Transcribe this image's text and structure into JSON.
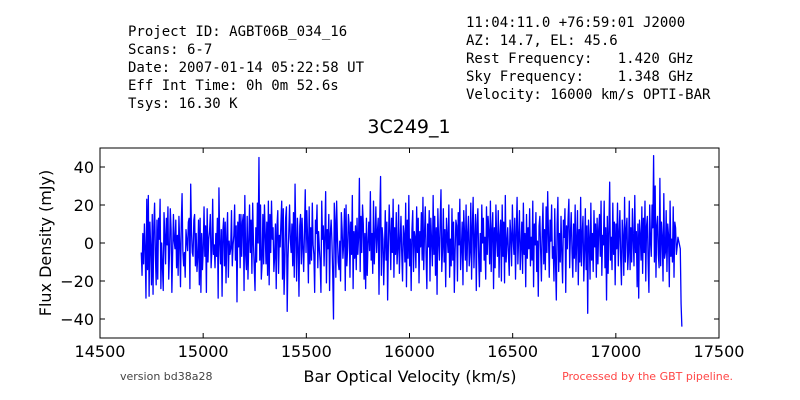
{
  "header": {
    "left": [
      "Project ID: AGBT06B_034_16",
      "Scans: 6-7",
      "Date: 2007-01-14 05:22:58 UT",
      "Eff Int Time: 0h 0m 52.6s",
      "Tsys: 16.30 K"
    ],
    "right": [
      "11:04:11.0 +76:59:01 J2000",
      "AZ: 14.7, EL: 45.6",
      "Rest Frequency:   1.420 GHz",
      "Sky Frequency:    1.348 GHz",
      "Velocity: 16000 km/s OPTI-BAR"
    ]
  },
  "footer": {
    "version": "version bd38a28",
    "processed": "Processed by the GBT pipeline."
  },
  "colors": {
    "series": "#0000ff",
    "processed_text": "#ff4444"
  },
  "chart_data": {
    "type": "line",
    "title": "3C249_1",
    "xlabel": "Bar Optical Velocity (km/s)",
    "ylabel": "Flux Density (mJy)",
    "xlim": [
      14500,
      17500
    ],
    "ylim": [
      -50,
      50
    ],
    "x_ticks": [
      14500,
      15000,
      15500,
      16000,
      16500,
      17000,
      17500
    ],
    "y_ticks": [
      -40,
      -20,
      0,
      20,
      40
    ],
    "grid": false,
    "series": [
      {
        "x_start": 14700,
        "x_end": 17320,
        "x_step": 5.95,
        "values": [
          -5,
          -17,
          5,
          -11,
          10,
          -3,
          -29,
          23,
          -14,
          25,
          -28,
          11,
          -2,
          -22,
          15,
          -27,
          9,
          21,
          -6,
          -22,
          12,
          -19,
          13,
          2,
          23,
          -24,
          0,
          -12,
          -25,
          16,
          4,
          -11,
          13,
          -1,
          19,
          -19,
          -5,
          18,
          7,
          -26,
          -5,
          15,
          1,
          -3,
          12,
          -13,
          4,
          -17,
          14,
          0,
          -23,
          10,
          26,
          -4,
          -12,
          -5,
          -18,
          7,
          1,
          -4,
          11,
          13,
          -24,
          31,
          6,
          -5,
          -7,
          12,
          15,
          -12,
          5,
          -15,
          -7,
          12,
          -22,
          13,
          -26,
          5,
          -14,
          -3,
          19,
          -7,
          9,
          -26,
          18,
          -10,
          2,
          6,
          15,
          -13,
          -4,
          23,
          -6,
          -1,
          -13,
          5,
          -7,
          13,
          -29,
          29,
          1,
          -11,
          7,
          -28,
          6,
          13,
          -12,
          11,
          -21,
          3,
          16,
          -18,
          1,
          -6,
          -3,
          17,
          -12,
          -1,
          4,
          20,
          -9,
          9,
          -31,
          11,
          -2,
          15,
          -13,
          15,
          -7,
          11,
          15,
          -25,
          25,
          -6,
          -14,
          14,
          -19,
          0,
          20,
          -5,
          12,
          -16,
          21,
          0,
          -13,
          -25,
          8,
          -10,
          21,
          0,
          45,
          -9,
          20,
          -19,
          -11,
          15,
          -11,
          20,
          5,
          -11,
          11,
          -17,
          22,
          -22,
          15,
          -5,
          22,
          2,
          8,
          -15,
          -7,
          10,
          -24,
          9,
          17,
          -16,
          4,
          -2,
          11,
          22,
          -19,
          18,
          -27,
          -10,
          13,
          19,
          -36,
          -8,
          5,
          20,
          2,
          -5,
          10,
          -12,
          16,
          -18,
          31,
          3,
          -20,
          13,
          -2,
          -28,
          9,
          15,
          -11,
          13,
          -3,
          -15,
          6,
          28,
          -5,
          17,
          2,
          -21,
          19,
          -11,
          8,
          -9,
          21,
          -1,
          -6,
          -26,
          12,
          5,
          20,
          -13,
          6,
          -3,
          -10,
          -26,
          22,
          2,
          9,
          -12,
          4,
          27,
          -21,
          7,
          -3,
          15,
          -25,
          5,
          12,
          1,
          -16,
          -40,
          21,
          12,
          -18,
          22,
          3,
          -10,
          -14,
          1,
          -20,
          16,
          7,
          -8,
          0,
          18,
          -25,
          20,
          -12,
          -3,
          15,
          9,
          -18,
          11,
          -6,
          25,
          -24,
          6,
          -8,
          9,
          -14,
          13,
          -6,
          3,
          34,
          -15,
          14,
          -5,
          20,
          10,
          -19,
          5,
          -24,
          13,
          -17,
          0,
          11,
          -4,
          27,
          -9,
          5,
          -16,
          22,
          -11,
          3,
          19,
          -5,
          6,
          13,
          -27,
          14,
          35,
          -17,
          8,
          2,
          -22,
          -4,
          17,
          -9,
          11,
          -30,
          0,
          20,
          6,
          -14,
          13,
          -5,
          23,
          -18,
          8,
          -6,
          16,
          -11,
          -3,
          20,
          -16,
          1,
          14,
          -6,
          -20,
          9,
          4,
          -10,
          21,
          -23,
          12,
          -8,
          25,
          -12,
          2,
          -25,
          7,
          17,
          -15,
          6,
          3,
          -13,
          19,
          -5,
          13,
          -21,
          6,
          -2,
          16,
          -9,
          24,
          -14,
          5,
          19,
          -7,
          -24,
          10,
          -2,
          17,
          -20,
          13,
          1,
          -12,
          25,
          -6,
          14,
          -17,
          8,
          -27,
          18,
          1,
          -9,
          12,
          28,
          -15,
          -3,
          18,
          -10,
          7,
          -23,
          13,
          3,
          -5,
          20,
          -18,
          2,
          -12,
          18,
          -9,
          11,
          -26,
          -4,
          12,
          9,
          -20,
          16,
          -1,
          23,
          -14,
          -3,
          11,
          -22,
          17,
          5,
          -9,
          20,
          -15,
          5,
          14,
          -12,
          -5,
          21,
          -19,
          9,
          24,
          -13,
          2,
          15,
          -25,
          10,
          18,
          -7,
          -23,
          5,
          -15,
          20,
          0,
          13,
          -9,
          3,
          -19,
          19,
          -6,
          14,
          6,
          -11,
          22,
          -15,
          7,
          16,
          -24,
          8,
          -13,
          20,
          2,
          -7,
          17,
          -18,
          4,
          12,
          -20,
          20,
          -7,
          11,
          -21,
          25,
          -10,
          0,
          8,
          -6,
          -17,
          12,
          4,
          -12,
          20,
          2,
          -6,
          13,
          -19,
          6,
          24,
          -11,
          3,
          17,
          -14,
          -2,
          11,
          -16,
          21,
          -6,
          5,
          -23,
          15,
          -8,
          8,
          -3,
          18,
          -12,
          3,
          -9,
          22,
          -23,
          10,
          -1,
          16,
          -15,
          1,
          -28,
          9,
          14,
          -4,
          -20,
          6,
          21,
          -11,
          7,
          -14,
          19,
          -5,
          27,
          4,
          -18,
          12,
          1,
          20,
          -8,
          -2,
          -20,
          18,
          -11,
          -30,
          10,
          24,
          -15,
          5,
          -10,
          14,
          -6,
          -21,
          12,
          3,
          18,
          -26,
          9,
          -3,
          13,
          23,
          -13,
          5,
          16,
          -5,
          -18,
          10,
          -8,
          20,
          -15,
          2,
          17,
          -22,
          7,
          -10,
          24,
          -12,
          5,
          14,
          -20,
          -4,
          18,
          -14,
          9,
          -37,
          12,
          2,
          -19,
          21,
          -9,
          5,
          -15,
          17,
          -2,
          10,
          -18,
          13,
          -11,
          7,
          15,
          -7,
          22,
          -17,
          4,
          -1,
          22,
          -13,
          8,
          -30,
          14,
          -16,
          6,
          32,
          -9,
          3,
          -14,
          21,
          -6,
          11,
          -22,
          10,
          -3,
          21,
          -12,
          5,
          17,
          -8,
          -22,
          12,
          3,
          -17,
          24,
          -10,
          7,
          13,
          -14,
          -5,
          22,
          -14,
          8,
          -10,
          18,
          2,
          -12,
          25,
          -5,
          6,
          -23,
          10,
          -29,
          12,
          4,
          -9,
          19,
          -16,
          13,
          -5,
          22,
          -20,
          9,
          14,
          -10,
          -26,
          20,
          1,
          -7,
          20,
          8,
          46,
          -10,
          30,
          -18,
          9,
          14,
          -6,
          -13,
          34,
          -12,
          11,
          3,
          -20,
          26,
          -8,
          -5,
          17,
          -15,
          10,
          4,
          -23,
          22,
          -7,
          2,
          -10,
          19,
          -18,
          11,
          8,
          -6,
          -2,
          3,
          1,
          -1,
          -3,
          -32,
          -44
        ]
      }
    ]
  }
}
